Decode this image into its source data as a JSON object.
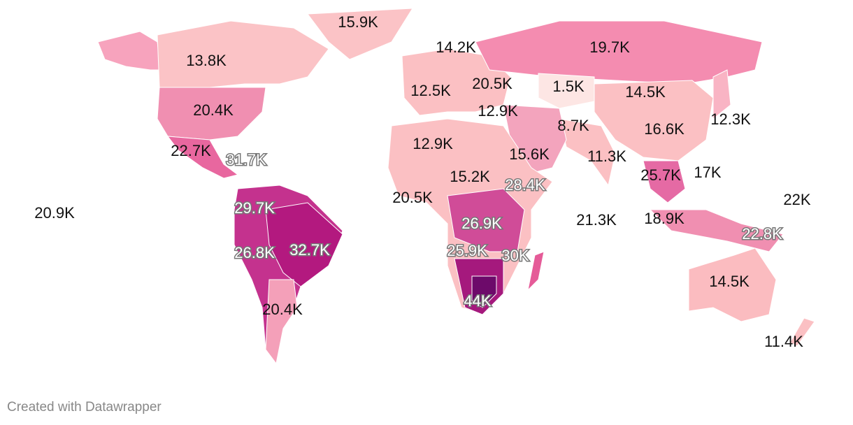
{
  "map": {
    "region_labels": [
      "15.9K",
      "14.2K",
      "19.7K",
      "13.8K",
      "12.5K",
      "20.5K",
      "1.5K",
      "14.5K",
      "20.4K",
      "12.9K",
      "12.3K",
      "8.7K",
      "16.6K",
      "12.9K",
      "22.7K",
      "31.7K",
      "15.6K",
      "11.3K",
      "15.2K",
      "28.4K",
      "25.7K",
      "17K",
      "20.5K",
      "22K",
      "20.9K",
      "29.7K",
      "21.3K",
      "26.9K",
      "18.9K",
      "22.8K",
      "26.8K",
      "32.7K",
      "25.9K",
      "30K",
      "14.5K",
      "44K",
      "20.4K",
      "11.4K"
    ]
  },
  "footer": "Created with Datawrapper"
}
